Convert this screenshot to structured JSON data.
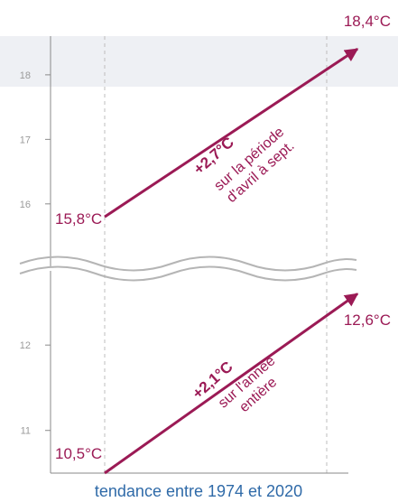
{
  "chart_data": {
    "type": "line",
    "xlabel": "tendance entre 1974 et 2020",
    "x_start": 1974,
    "x_end": 2020,
    "broken_axis": true,
    "upper_panel": {
      "ylim": [
        15.2,
        18.6
      ],
      "yticks": [
        "16",
        "17",
        "18"
      ],
      "start_label": "15,8°C",
      "end_label": "18,4°C",
      "change_label": "+2,7°C",
      "period_lines": [
        "sur la période",
        "d'avril à sept."
      ],
      "values": [
        15.8,
        18.4
      ]
    },
    "lower_panel": {
      "ylim": [
        10.5,
        12.7
      ],
      "yticks": [
        "11",
        "12"
      ],
      "start_label": "10,5°C",
      "end_label": "12,6°C",
      "change_label": "+2,1°C",
      "period_lines": [
        "sur l'année",
        "entière"
      ],
      "values": [
        10.5,
        12.6
      ]
    },
    "colors": {
      "trend": "#9b1a55",
      "axis": "#8a8a8a",
      "band": "#eef0f4",
      "xlabel": "#2f6aa8"
    }
  }
}
